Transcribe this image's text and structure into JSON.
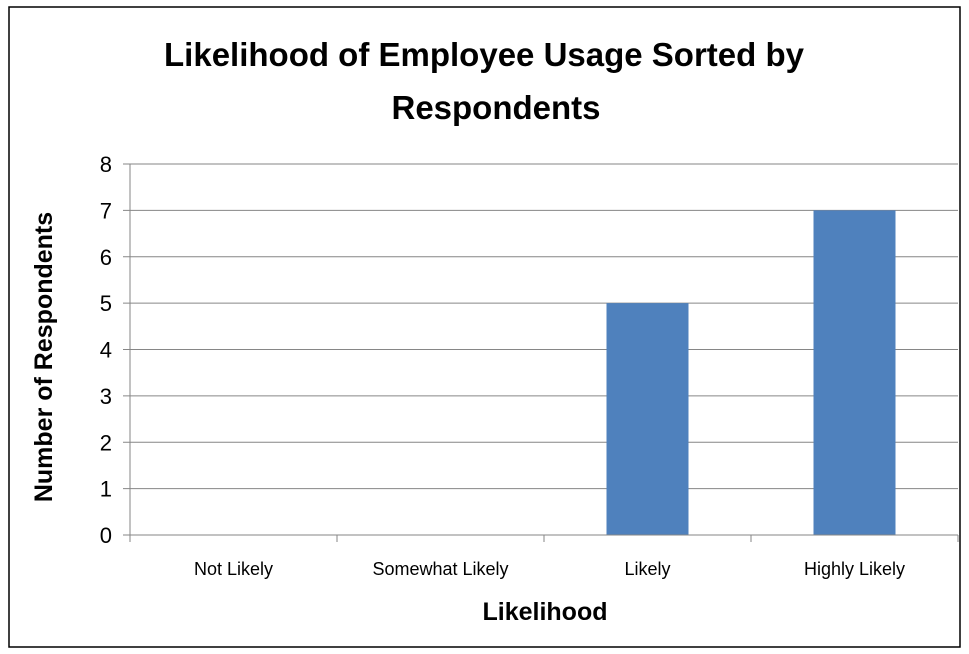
{
  "chart_data": {
    "type": "bar",
    "title_lines": [
      "Likelihood of Employee Usage Sorted by",
      "Respondents"
    ],
    "xlabel": "Likelihood",
    "ylabel": "Number of Respondents",
    "categories": [
      "Not Likely",
      "Somewhat Likely",
      "Likely",
      "Highly Likely"
    ],
    "values": [
      0,
      0,
      5,
      7
    ],
    "ylim": [
      0,
      8
    ],
    "yticks": [
      "0",
      "1",
      "2",
      "3",
      "4",
      "5",
      "6",
      "7",
      "8"
    ],
    "grid": true,
    "legend": "none",
    "colors": {
      "bar": "#4F81BD",
      "gridline": "#868686",
      "axis": "#868686",
      "border": "#000000"
    }
  }
}
